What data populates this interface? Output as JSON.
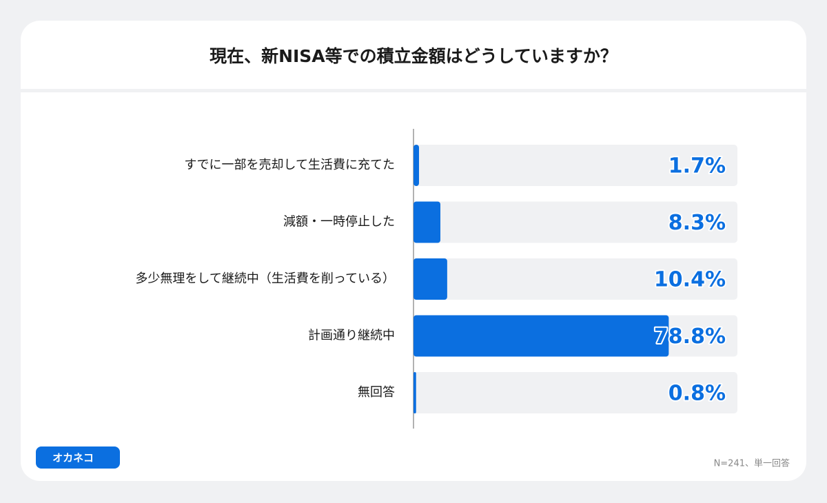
{
  "chart_data": {
    "type": "bar",
    "orientation": "horizontal",
    "title": "現在、新NISA等での積立金額はどうしていますか？",
    "categories": [
      "すでに一部を売却して生活費に充てた",
      "減額・一時停止した",
      "多少無理をして継続中（生活費を削っている）",
      "計画通り継続中",
      "無回答"
    ],
    "values": [
      1.7,
      8.3,
      10.4,
      78.8,
      0.8
    ],
    "value_labels": [
      "1.7%",
      "8.3%",
      "10.4%",
      "78.8%",
      "0.8%"
    ],
    "color": "#0b6fe0",
    "xlim": [
      0,
      100
    ],
    "note": "N=241、単一回答"
  },
  "logo": "オカネコ"
}
